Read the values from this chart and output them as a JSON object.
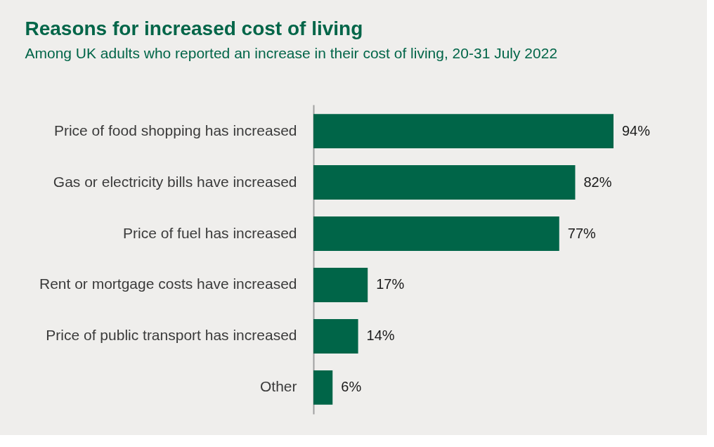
{
  "chart_data": {
    "type": "bar",
    "orientation": "horizontal",
    "title": "Reasons for increased cost of living",
    "subtitle": "Among UK adults who reported an increase in their cost of living, 20-31 July 2022",
    "categories": [
      "Price of food shopping has increased",
      "Gas or electricity bills have increased",
      "Price of fuel has increased",
      "Rent or mortgage costs have increased",
      "Price of public transport has increased",
      "Other"
    ],
    "values": [
      94,
      82,
      77,
      17,
      14,
      6
    ],
    "value_labels": [
      "94%",
      "82%",
      "77%",
      "17%",
      "14%",
      "6%"
    ],
    "color": "#006548",
    "grid": false
  }
}
